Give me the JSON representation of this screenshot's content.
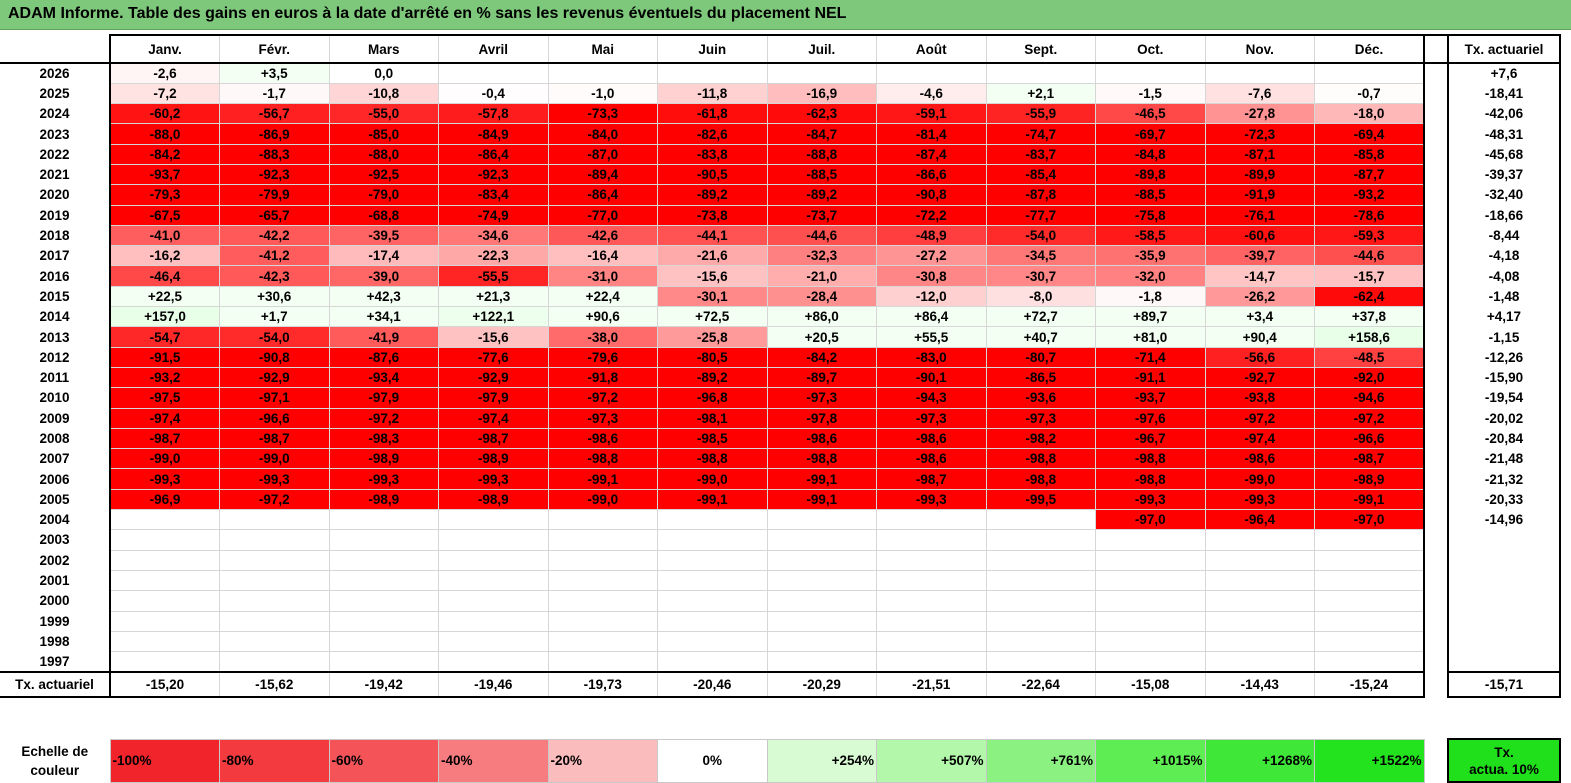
{
  "title": "ADAM Informe. Table des gains en euros à la date d'arrêté en % sans les revenus éventuels du placement NEL",
  "header": {
    "months": [
      "Janv.",
      "Févr.",
      "Mars",
      "Avril",
      "Mai",
      "Juin",
      "Juil.",
      "Août",
      "Sept.",
      "Oct.",
      "Nov.",
      "Déc."
    ],
    "rate_label": "Tx. actuariel"
  },
  "rows": [
    {
      "year": "2026",
      "values": [
        "-2,6",
        "+3,5",
        "0,0",
        "",
        "",
        "",
        "",
        "",
        "",
        "",
        "",
        ""
      ],
      "rate": "+7,6"
    },
    {
      "year": "2025",
      "values": [
        "-7,2",
        "-1,7",
        "-10,8",
        "-0,4",
        "-1,0",
        "-11,8",
        "-16,9",
        "-4,6",
        "+2,1",
        "-1,5",
        "-7,6",
        "-0,7"
      ],
      "rate": "-18,41"
    },
    {
      "year": "2024",
      "values": [
        "-60,2",
        "-56,7",
        "-55,0",
        "-57,8",
        "-73,3",
        "-61,8",
        "-62,3",
        "-59,1",
        "-55,9",
        "-46,5",
        "-27,8",
        "-18,0"
      ],
      "rate": "-42,06"
    },
    {
      "year": "2023",
      "values": [
        "-88,0",
        "-86,9",
        "-85,0",
        "-84,9",
        "-84,0",
        "-82,6",
        "-84,7",
        "-81,4",
        "-74,7",
        "-69,7",
        "-72,3",
        "-69,4"
      ],
      "rate": "-48,31"
    },
    {
      "year": "2022",
      "values": [
        "-84,2",
        "-88,3",
        "-88,0",
        "-86,4",
        "-87,0",
        "-83,8",
        "-88,8",
        "-87,4",
        "-83,7",
        "-84,8",
        "-87,1",
        "-85,8"
      ],
      "rate": "-45,68"
    },
    {
      "year": "2021",
      "values": [
        "-93,7",
        "-92,3",
        "-92,5",
        "-92,3",
        "-89,4",
        "-90,5",
        "-88,5",
        "-86,6",
        "-85,4",
        "-89,8",
        "-89,9",
        "-87,7"
      ],
      "rate": "-39,37"
    },
    {
      "year": "2020",
      "values": [
        "-79,3",
        "-79,9",
        "-79,0",
        "-83,4",
        "-86,4",
        "-89,2",
        "-89,2",
        "-90,8",
        "-87,8",
        "-88,5",
        "-91,9",
        "-93,2"
      ],
      "rate": "-32,40"
    },
    {
      "year": "2019",
      "values": [
        "-67,5",
        "-65,7",
        "-68,8",
        "-74,9",
        "-77,0",
        "-73,8",
        "-73,7",
        "-72,2",
        "-77,7",
        "-75,8",
        "-76,1",
        "-78,6"
      ],
      "rate": "-18,66"
    },
    {
      "year": "2018",
      "values": [
        "-41,0",
        "-42,2",
        "-39,5",
        "-34,6",
        "-42,6",
        "-44,1",
        "-44,6",
        "-48,9",
        "-54,0",
        "-58,5",
        "-60,6",
        "-59,3"
      ],
      "rate": "-8,44"
    },
    {
      "year": "2017",
      "values": [
        "-16,2",
        "-41,2",
        "-17,4",
        "-22,3",
        "-16,4",
        "-21,6",
        "-32,3",
        "-27,2",
        "-34,5",
        "-35,9",
        "-39,7",
        "-44,6"
      ],
      "rate": "-4,18"
    },
    {
      "year": "2016",
      "values": [
        "-46,4",
        "-42,3",
        "-39,0",
        "-55,5",
        "-31,0",
        "-15,6",
        "-21,0",
        "-30,8",
        "-30,7",
        "-32,0",
        "-14,7",
        "-15,7"
      ],
      "rate": "-4,08"
    },
    {
      "year": "2015",
      "values": [
        "+22,5",
        "+30,6",
        "+42,3",
        "+21,3",
        "+22,4",
        "-30,1",
        "-28,4",
        "-12,0",
        "-8,0",
        "-1,8",
        "-26,2",
        "-62,4"
      ],
      "rate": "-1,48"
    },
    {
      "year": "2014",
      "values": [
        "+157,0",
        "+1,7",
        "+34,1",
        "+122,1",
        "+90,6",
        "+72,5",
        "+86,0",
        "+86,4",
        "+72,7",
        "+89,7",
        "+3,4",
        "+37,8"
      ],
      "rate": "+4,17"
    },
    {
      "year": "2013",
      "values": [
        "-54,7",
        "-54,0",
        "-41,9",
        "-15,6",
        "-38,0",
        "-25,8",
        "+20,5",
        "+55,5",
        "+40,7",
        "+81,0",
        "+90,4",
        "+158,6"
      ],
      "rate": "-1,15"
    },
    {
      "year": "2012",
      "values": [
        "-91,5",
        "-90,8",
        "-87,6",
        "-77,6",
        "-79,6",
        "-80,5",
        "-84,2",
        "-83,0",
        "-80,7",
        "-71,4",
        "-56,6",
        "-48,5"
      ],
      "rate": "-12,26"
    },
    {
      "year": "2011",
      "values": [
        "-93,2",
        "-92,9",
        "-93,4",
        "-92,9",
        "-91,8",
        "-89,2",
        "-89,7",
        "-90,1",
        "-86,5",
        "-91,1",
        "-92,7",
        "-92,0"
      ],
      "rate": "-15,90"
    },
    {
      "year": "2010",
      "values": [
        "-97,5",
        "-97,1",
        "-97,9",
        "-97,9",
        "-97,2",
        "-96,8",
        "-97,3",
        "-94,3",
        "-93,6",
        "-93,7",
        "-93,8",
        "-94,6"
      ],
      "rate": "-19,54"
    },
    {
      "year": "2009",
      "values": [
        "-97,4",
        "-96,6",
        "-97,2",
        "-97,4",
        "-97,3",
        "-98,1",
        "-97,8",
        "-97,3",
        "-97,3",
        "-97,6",
        "-97,2",
        "-97,2"
      ],
      "rate": "-20,02"
    },
    {
      "year": "2008",
      "values": [
        "-98,7",
        "-98,7",
        "-98,3",
        "-98,7",
        "-98,6",
        "-98,5",
        "-98,6",
        "-98,6",
        "-98,2",
        "-96,7",
        "-97,4",
        "-96,6"
      ],
      "rate": "-20,84"
    },
    {
      "year": "2007",
      "values": [
        "-99,0",
        "-99,0",
        "-98,9",
        "-98,9",
        "-98,8",
        "-98,8",
        "-98,8",
        "-98,6",
        "-98,8",
        "-98,8",
        "-98,6",
        "-98,7"
      ],
      "rate": "-21,48"
    },
    {
      "year": "2006",
      "values": [
        "-99,3",
        "-99,3",
        "-99,3",
        "-99,3",
        "-99,1",
        "-99,0",
        "-99,1",
        "-98,7",
        "-98,8",
        "-98,8",
        "-99,0",
        "-98,9"
      ],
      "rate": "-21,32"
    },
    {
      "year": "2005",
      "values": [
        "-96,9",
        "-97,2",
        "-98,9",
        "-98,9",
        "-99,0",
        "-99,1",
        "-99,1",
        "-99,3",
        "-99,5",
        "-99,3",
        "-99,3",
        "-99,1"
      ],
      "rate": "-20,33"
    },
    {
      "year": "2004",
      "values": [
        "",
        "",
        "",
        "",
        "",
        "",
        "",
        "",
        "",
        "-97,0",
        "-96,4",
        "-97,0"
      ],
      "rate": "-14,96"
    },
    {
      "year": "2003",
      "values": [
        "",
        "",
        "",
        "",
        "",
        "",
        "",
        "",
        "",
        "",
        "",
        ""
      ],
      "rate": ""
    },
    {
      "year": "2002",
      "values": [
        "",
        "",
        "",
        "",
        "",
        "",
        "",
        "",
        "",
        "",
        "",
        ""
      ],
      "rate": ""
    },
    {
      "year": "2001",
      "values": [
        "",
        "",
        "",
        "",
        "",
        "",
        "",
        "",
        "",
        "",
        "",
        ""
      ],
      "rate": ""
    },
    {
      "year": "2000",
      "values": [
        "",
        "",
        "",
        "",
        "",
        "",
        "",
        "",
        "",
        "",
        "",
        ""
      ],
      "rate": ""
    },
    {
      "year": "1999",
      "values": [
        "",
        "",
        "",
        "",
        "",
        "",
        "",
        "",
        "",
        "",
        "",
        ""
      ],
      "rate": ""
    },
    {
      "year": "1998",
      "values": [
        "",
        "",
        "",
        "",
        "",
        "",
        "",
        "",
        "",
        "",
        "",
        ""
      ],
      "rate": ""
    },
    {
      "year": "1997",
      "values": [
        "",
        "",
        "",
        "",
        "",
        "",
        "",
        "",
        "",
        "",
        "",
        ""
      ],
      "rate": ""
    }
  ],
  "summary": {
    "label": "Tx. actuariel",
    "values": [
      "-15,20",
      "-15,62",
      "-19,42",
      "-19,46",
      "-19,73",
      "-20,46",
      "-20,29",
      "-21,51",
      "-22,64",
      "-15,08",
      "-14,43",
      "-15,24"
    ],
    "rate": "-15,71"
  },
  "scale": {
    "label_line1": "Echelle de",
    "label_line2": "couleur",
    "items": [
      {
        "text": "-100%",
        "color": "#f0242a",
        "align": "left"
      },
      {
        "text": "-80%",
        "color": "#f23a3f",
        "align": "left"
      },
      {
        "text": "-60%",
        "color": "#f45458",
        "align": "left"
      },
      {
        "text": "-40%",
        "color": "#f77c7f",
        "align": "left"
      },
      {
        "text": "-20%",
        "color": "#fbbcbd",
        "align": "left"
      },
      {
        "text": "0%",
        "color": "#ffffff",
        "align": "center"
      },
      {
        "text": "+254%",
        "color": "#d9fbd4",
        "align": "right"
      },
      {
        "text": "+507%",
        "color": "#b2f7aa",
        "align": "right"
      },
      {
        "text": "+761%",
        "color": "#8bf282",
        "align": "right"
      },
      {
        "text": "+1015%",
        "color": "#5eee54",
        "align": "right"
      },
      {
        "text": "+1268%",
        "color": "#3fe838",
        "align": "right"
      },
      {
        "text": "+1522%",
        "color": "#22e31e",
        "align": "right"
      }
    ],
    "actual_line1": "Tx.",
    "actual_line2": "actua. 10%",
    "actual_color": "#1fe01a"
  },
  "colors": {
    "title_bg": "#7ec87b",
    "negative_full": "#ff0000",
    "positive_full": "#00e000"
  }
}
